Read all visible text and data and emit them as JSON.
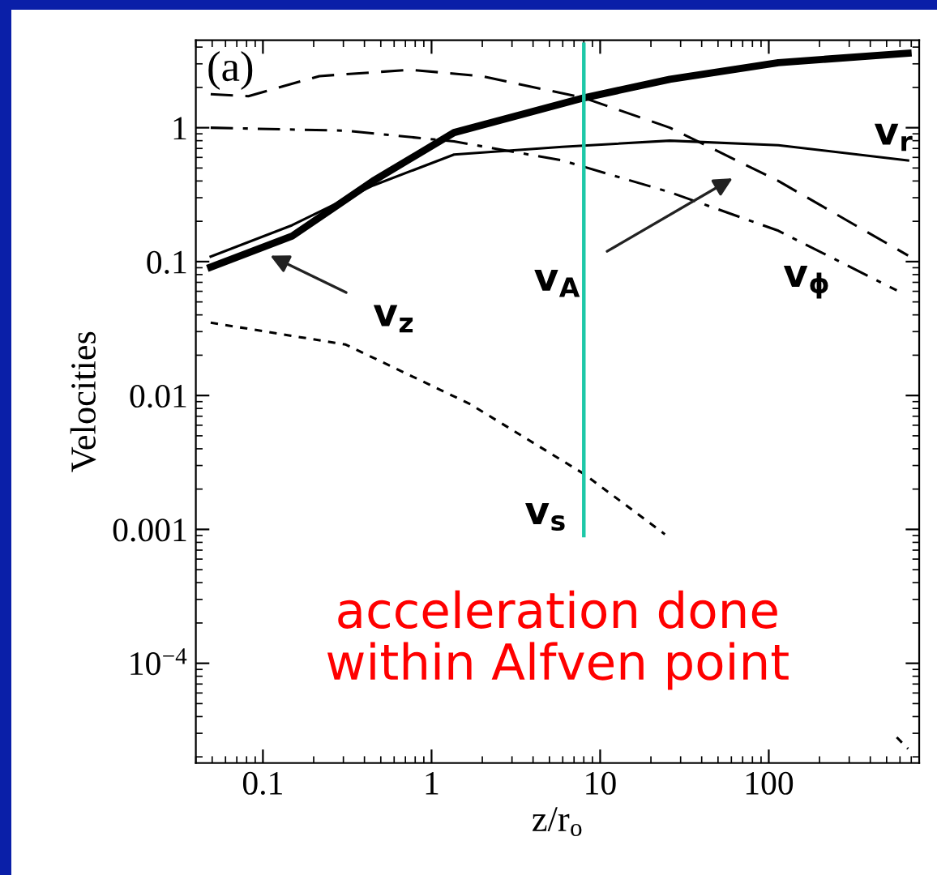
{
  "chart_data": {
    "type": "line",
    "xlabel": "z/r$_{o}$",
    "ylabel": "Velocities",
    "log": "xy",
    "grid": false,
    "marker": "none",
    "xlim": [
      0.04,
      780
    ],
    "ylim": [
      1.8e-05,
      4.5
    ],
    "xticks": [
      0.1,
      1,
      10,
      100
    ],
    "yticks": [
      {
        "value": 0.0001,
        "label": "10$^{−4}$"
      },
      0.001,
      0.01,
      0.1,
      1
    ],
    "series": [
      {
        "color": "#000000",
        "line_style": "solid",
        "x": [
          0.049,
          0.149,
          0.45,
          1.36,
          8.0,
          25.9,
          114,
          670
        ],
        "values": [
          0.091,
          0.155,
          0.4,
          0.92,
          1.67,
          2.3,
          3.06,
          3.6
        ]
      },
      {
        "color": "#000000",
        "line_style": "solid",
        "x": [
          0.049,
          0.149,
          0.45,
          1.36,
          5.96,
          25.9,
          114,
          670
        ],
        "values": [
          0.109,
          0.187,
          0.37,
          0.63,
          0.72,
          0.8,
          0.74,
          0.57
        ]
      },
      {
        "color": "#000000",
        "line_style": "dashdot",
        "x": [
          0.049,
          0.31,
          1.36,
          5.96,
          25.9,
          114,
          574
        ],
        "values": [
          1.0,
          0.95,
          0.79,
          0.57,
          0.33,
          0.17,
          0.061
        ]
      },
      {
        "color": "#000000",
        "line_style": "dashed",
        "x": [
          0.049,
          0.082,
          0.216,
          0.75,
          1.97,
          8.0,
          25.9,
          114,
          670
        ],
        "values": [
          1.78,
          1.72,
          2.43,
          2.71,
          2.43,
          1.67,
          1.0,
          0.4,
          0.111
        ]
      },
      {
        "color": "#000000",
        "line_style": "dotted",
        "x": [
          0.049,
          0.31,
          1.7,
          8.0,
          24.2,
          100,
          574,
          670
        ],
        "values": [
          0.035,
          0.024,
          0.0086,
          0.0026,
          0.00092,
          null,
          2.8e-05,
          2.3e-05
        ]
      },
      {
        "color": "#1ec8a8",
        "line_style": "solid",
        "x": [
          8.0,
          8.0
        ],
        "values": [
          4.2,
          0.0009
        ]
      }
    ],
    "annotations": [
      "(a)",
      "v$_{z}$",
      "v$_{A}$",
      "v$_{r}$",
      "v$_{ϕ}$",
      "v$_{s}$",
      "acceleration done\nwithin Alfven point"
    ]
  }
}
